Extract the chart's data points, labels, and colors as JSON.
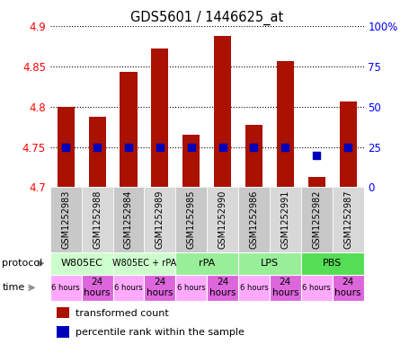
{
  "title": "GDS5601 / 1446625_at",
  "samples": [
    "GSM1252983",
    "GSM1252988",
    "GSM1252984",
    "GSM1252989",
    "GSM1252985",
    "GSM1252990",
    "GSM1252986",
    "GSM1252991",
    "GSM1252982",
    "GSM1252987"
  ],
  "transformed_count": [
    4.8,
    4.788,
    4.844,
    4.873,
    4.765,
    4.888,
    4.778,
    4.857,
    4.713,
    4.807
  ],
  "percentile_rank": [
    25,
    25,
    25,
    25,
    25,
    25,
    25,
    25,
    20,
    25
  ],
  "ylim": [
    4.7,
    4.9
  ],
  "yticks": [
    4.7,
    4.75,
    4.8,
    4.85,
    4.9
  ],
  "y2ticks": [
    0,
    25,
    50,
    75,
    100
  ],
  "y2labels": [
    "0",
    "25",
    "50",
    "75",
    "100%"
  ],
  "protocols": [
    {
      "label": "W805EC",
      "start": 0,
      "end": 2,
      "color": "#ccffcc"
    },
    {
      "label": "W805EC + rPA",
      "start": 2,
      "end": 4,
      "color": "#ccffcc"
    },
    {
      "label": "rPA",
      "start": 4,
      "end": 6,
      "color": "#99ee99"
    },
    {
      "label": "LPS",
      "start": 6,
      "end": 8,
      "color": "#99ee99"
    },
    {
      "label": "PBS",
      "start": 8,
      "end": 10,
      "color": "#55dd55"
    }
  ],
  "times": [
    {
      "label": "6 hours",
      "start": 0,
      "end": 1,
      "big": false
    },
    {
      "label": "24\nhours",
      "start": 1,
      "end": 2,
      "big": true
    },
    {
      "label": "6 hours",
      "start": 2,
      "end": 3,
      "big": false
    },
    {
      "label": "24\nhours",
      "start": 3,
      "end": 4,
      "big": true
    },
    {
      "label": "6 hours",
      "start": 4,
      "end": 5,
      "big": false
    },
    {
      "label": "24\nhours",
      "start": 5,
      "end": 6,
      "big": true
    },
    {
      "label": "6 hours",
      "start": 6,
      "end": 7,
      "big": false
    },
    {
      "label": "24\nhours",
      "start": 7,
      "end": 8,
      "big": true
    },
    {
      "label": "6 hours",
      "start": 8,
      "end": 9,
      "big": false
    },
    {
      "label": "24\nhours",
      "start": 9,
      "end": 10,
      "big": true
    }
  ],
  "time_color_small": "#ffaaff",
  "time_color_big": "#dd66dd",
  "bar_color": "#aa1100",
  "dot_color": "#0000bb",
  "bar_bottom": 4.7,
  "bar_width": 0.55,
  "dot_size": 40,
  "sample_bg_even": "#c8c8c8",
  "sample_bg_odd": "#d8d8d8",
  "legend_items": [
    {
      "color": "#aa1100",
      "label": "transformed count"
    },
    {
      "color": "#0000bb",
      "label": "percentile rank within the sample"
    }
  ]
}
